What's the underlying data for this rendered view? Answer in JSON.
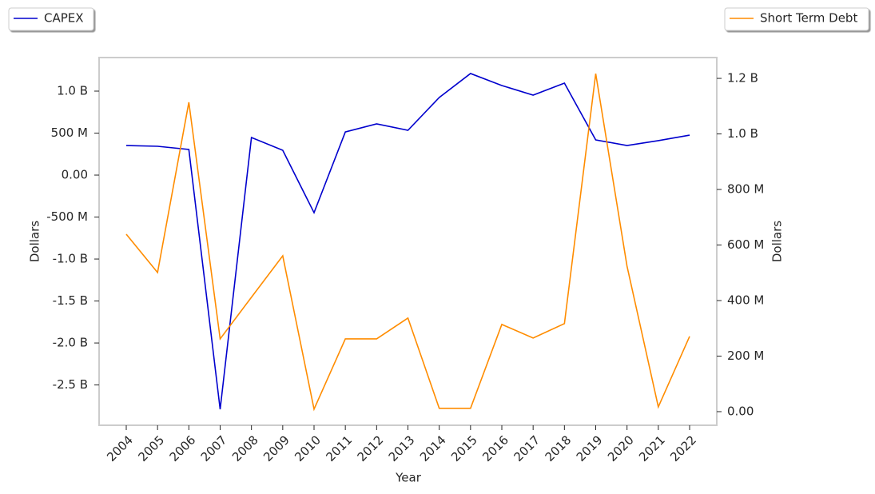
{
  "chart_data": {
    "type": "line",
    "x_label": "Year",
    "y_label": "Dollars",
    "y2_label": "Dollars",
    "categories": [
      "2004",
      "2005",
      "2006",
      "2007",
      "2008",
      "2009",
      "2010",
      "2011",
      "2012",
      "2013",
      "2014",
      "2015",
      "2016",
      "2017",
      "2018",
      "2019",
      "2020",
      "2021",
      "2022"
    ],
    "series": [
      {
        "name": "CAPEX",
        "color": "#0000cd",
        "values": [
          352000000,
          343000000,
          305000000,
          -2790000000,
          448000000,
          295000000,
          -448000000,
          514000000,
          610000000,
          533000000,
          924000000,
          1210000000,
          1067000000,
          952000000,
          1095000000,
          419000000,
          352000000,
          410000000,
          476000000
        ]
      },
      {
        "name": "Short Term Debt",
        "color": "#ff8c00",
        "axis": "y2",
        "values": [
          639000000,
          501000000,
          1114000000,
          262000000,
          412000000,
          561000000,
          9000000,
          262000000,
          262000000,
          337000000,
          12000000,
          12000000,
          314000000,
          265000000,
          317000000,
          1217000000,
          524000000,
          17000000,
          271000000
        ]
      }
    ],
    "ylim": [
      -2980000000,
      1400000000
    ],
    "yticks": [
      {
        "value": 1000000000,
        "label": "1.0 B"
      },
      {
        "value": 500000000,
        "label": "500 M"
      },
      {
        "value": 0,
        "label": "0.00"
      },
      {
        "value": -500000000,
        "label": "-500 M"
      },
      {
        "value": -1000000000,
        "label": "-1.0 B"
      },
      {
        "value": -1500000000,
        "label": "-1.5 B"
      },
      {
        "value": -2000000000,
        "label": "-2.0 B"
      },
      {
        "value": -2500000000,
        "label": "-2.5 B"
      }
    ],
    "y2lim": [
      -49000000,
      1275000000
    ],
    "y2ticks": [
      {
        "value": 0,
        "label": "0.00"
      },
      {
        "value": 200000000,
        "label": "200 M"
      },
      {
        "value": 400000000,
        "label": "400 M"
      },
      {
        "value": 600000000,
        "label": "600 M"
      },
      {
        "value": 800000000,
        "label": "800 M"
      },
      {
        "value": 1000000000,
        "label": "1.0 B"
      },
      {
        "value": 1200000000,
        "label": "1.2 B"
      }
    ],
    "grid": false
  }
}
